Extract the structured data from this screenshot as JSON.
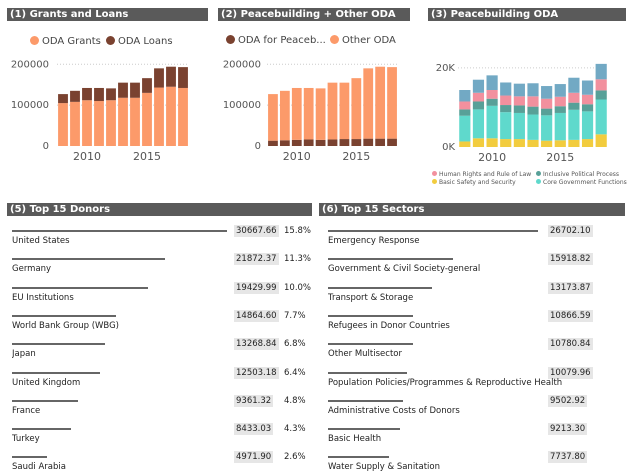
{
  "panels": {
    "p1_title": "(1) Grants and Loans",
    "p2_title": "(2) Peacebuilding + Other ODA",
    "p3_title": "(3) Peacebuilding ODA",
    "p5_title": "(5) Top 15 Donors",
    "p6_title": "(6) Top 15 Sectors"
  },
  "chart_data": [
    {
      "type": "bar",
      "stacked": true,
      "title": "(1) Grants and Loans",
      "x": [
        2008,
        2009,
        2010,
        2011,
        2012,
        2013,
        2014,
        2015,
        2016,
        2017,
        2018
      ],
      "x_ticks": [
        "2010",
        "2015"
      ],
      "y_ticks": [
        "0",
        "100000",
        "200000"
      ],
      "ylim": [
        0,
        230000
      ],
      "series": [
        {
          "name": "ODA Grants",
          "color": "#fc9a6a",
          "values": [
            105000,
            108000,
            112000,
            110000,
            112000,
            118000,
            118000,
            130000,
            143000,
            145000,
            142000
          ]
        },
        {
          "name": "ODA Loans",
          "color": "#7a4230",
          "values": [
            22000,
            27000,
            30000,
            32000,
            29000,
            37000,
            37000,
            36000,
            47000,
            49000,
            51000
          ]
        }
      ]
    },
    {
      "type": "bar",
      "stacked": true,
      "title": "(2) Peacebuilding + Other ODA",
      "x": [
        2008,
        2009,
        2010,
        2011,
        2012,
        2013,
        2014,
        2015,
        2016,
        2017,
        2018
      ],
      "x_ticks": [
        "2010",
        "2015"
      ],
      "y_ticks": [
        "0",
        "100000",
        "200000"
      ],
      "ylim": [
        0,
        230000
      ],
      "series": [
        {
          "name": "ODA for Peaceb...",
          "color": "#7a4230",
          "values": [
            13000,
            14000,
            15000,
            16000,
            15000,
            16000,
            17000,
            17000,
            18000,
            18000,
            18000
          ]
        },
        {
          "name": "Other ODA",
          "color": "#fc9a6a",
          "values": [
            114000,
            121000,
            127000,
            126000,
            126000,
            139000,
            138000,
            149000,
            172000,
            176000,
            175000
          ]
        }
      ]
    },
    {
      "type": "bar",
      "stacked": true,
      "title": "(3) Peacebuilding ODA",
      "x": [
        2008,
        2009,
        2010,
        2011,
        2012,
        2013,
        2014,
        2015,
        2016,
        2017,
        2018
      ],
      "x_ticks": [
        "2010",
        "2015"
      ],
      "y_ticks": [
        "0K",
        "20K"
      ],
      "ylim": [
        0,
        24000
      ],
      "series": [
        {
          "name": "Basic Safety and Security",
          "color": "#f2cc3e",
          "values": [
            1400,
            2200,
            2200,
            2000,
            2000,
            1800,
            1600,
            1700,
            1800,
            2000,
            3200
          ]
        },
        {
          "name": "Core Government Functions",
          "color": "#5fd9cc",
          "values": [
            6500,
            7300,
            8200,
            6800,
            6600,
            6400,
            6400,
            6900,
            7600,
            7000,
            8800
          ]
        },
        {
          "name": "Inclusive Political Process",
          "color": "#58a098",
          "values": [
            1600,
            2000,
            1800,
            1800,
            1900,
            2000,
            1700,
            1700,
            1800,
            1800,
            2300
          ]
        },
        {
          "name": "Human Rights and Rule of Law",
          "color": "#f2909e",
          "values": [
            2000,
            2200,
            2200,
            2400,
            2300,
            2600,
            2500,
            2400,
            2500,
            2400,
            2800
          ]
        },
        {
          "name": "",
          "color": "#72a9c4",
          "values": [
            2900,
            3300,
            3700,
            3300,
            3200,
            3300,
            3200,
            3200,
            3800,
            3600,
            3900
          ]
        }
      ]
    },
    {
      "type": "bar",
      "orientation": "horizontal",
      "title": "(5) Top 15 Donors",
      "max": 30667.66,
      "items": [
        {
          "label": "United States",
          "value": "30667.66",
          "pct": "15.8%",
          "num": 30667.66
        },
        {
          "label": "Germany",
          "value": "21872.37",
          "pct": "11.3%",
          "num": 21872.37
        },
        {
          "label": "EU Institutions",
          "value": "19429.99",
          "pct": "10.0%",
          "num": 19429.99
        },
        {
          "label": "World Bank Group (WBG)",
          "value": "14864.60",
          "pct": "7.7%",
          "num": 14864.6
        },
        {
          "label": "Japan",
          "value": "13268.84",
          "pct": "6.8%",
          "num": 13268.84
        },
        {
          "label": "United Kingdom",
          "value": "12503.18",
          "pct": "6.4%",
          "num": 12503.18
        },
        {
          "label": "France",
          "value": "9361.32",
          "pct": "4.8%",
          "num": 9361.32
        },
        {
          "label": "Turkey",
          "value": "8433.03",
          "pct": "4.3%",
          "num": 8433.03
        },
        {
          "label": "Saudi Arabia",
          "value": "4971.90",
          "pct": "2.6%",
          "num": 4971.9
        }
      ]
    },
    {
      "type": "bar",
      "orientation": "horizontal",
      "title": "(6) Top 15 Sectors",
      "max": 26702.1,
      "items": [
        {
          "label": "Emergency Response",
          "value": "26702.10",
          "num": 26702.1
        },
        {
          "label": "Government & Civil Society-general",
          "value": "15918.82",
          "num": 15918.82
        },
        {
          "label": "Transport & Storage",
          "value": "13173.87",
          "num": 13173.87
        },
        {
          "label": "Refugees in Donor Countries",
          "value": "10866.59",
          "num": 10866.59
        },
        {
          "label": "Other Multisector",
          "value": "10780.84",
          "num": 10780.84
        },
        {
          "label": "Population Policies/Programmes & Reproductive Health",
          "value": "10079.96",
          "num": 10079.96
        },
        {
          "label": "Administrative Costs of Donors",
          "value": "9502.92",
          "num": 9502.92
        },
        {
          "label": "Basic Health",
          "value": "9213.30",
          "num": 9213.3
        },
        {
          "label": "Water Supply & Sanitation",
          "value": "7737.80",
          "num": 7737.8
        }
      ]
    }
  ]
}
